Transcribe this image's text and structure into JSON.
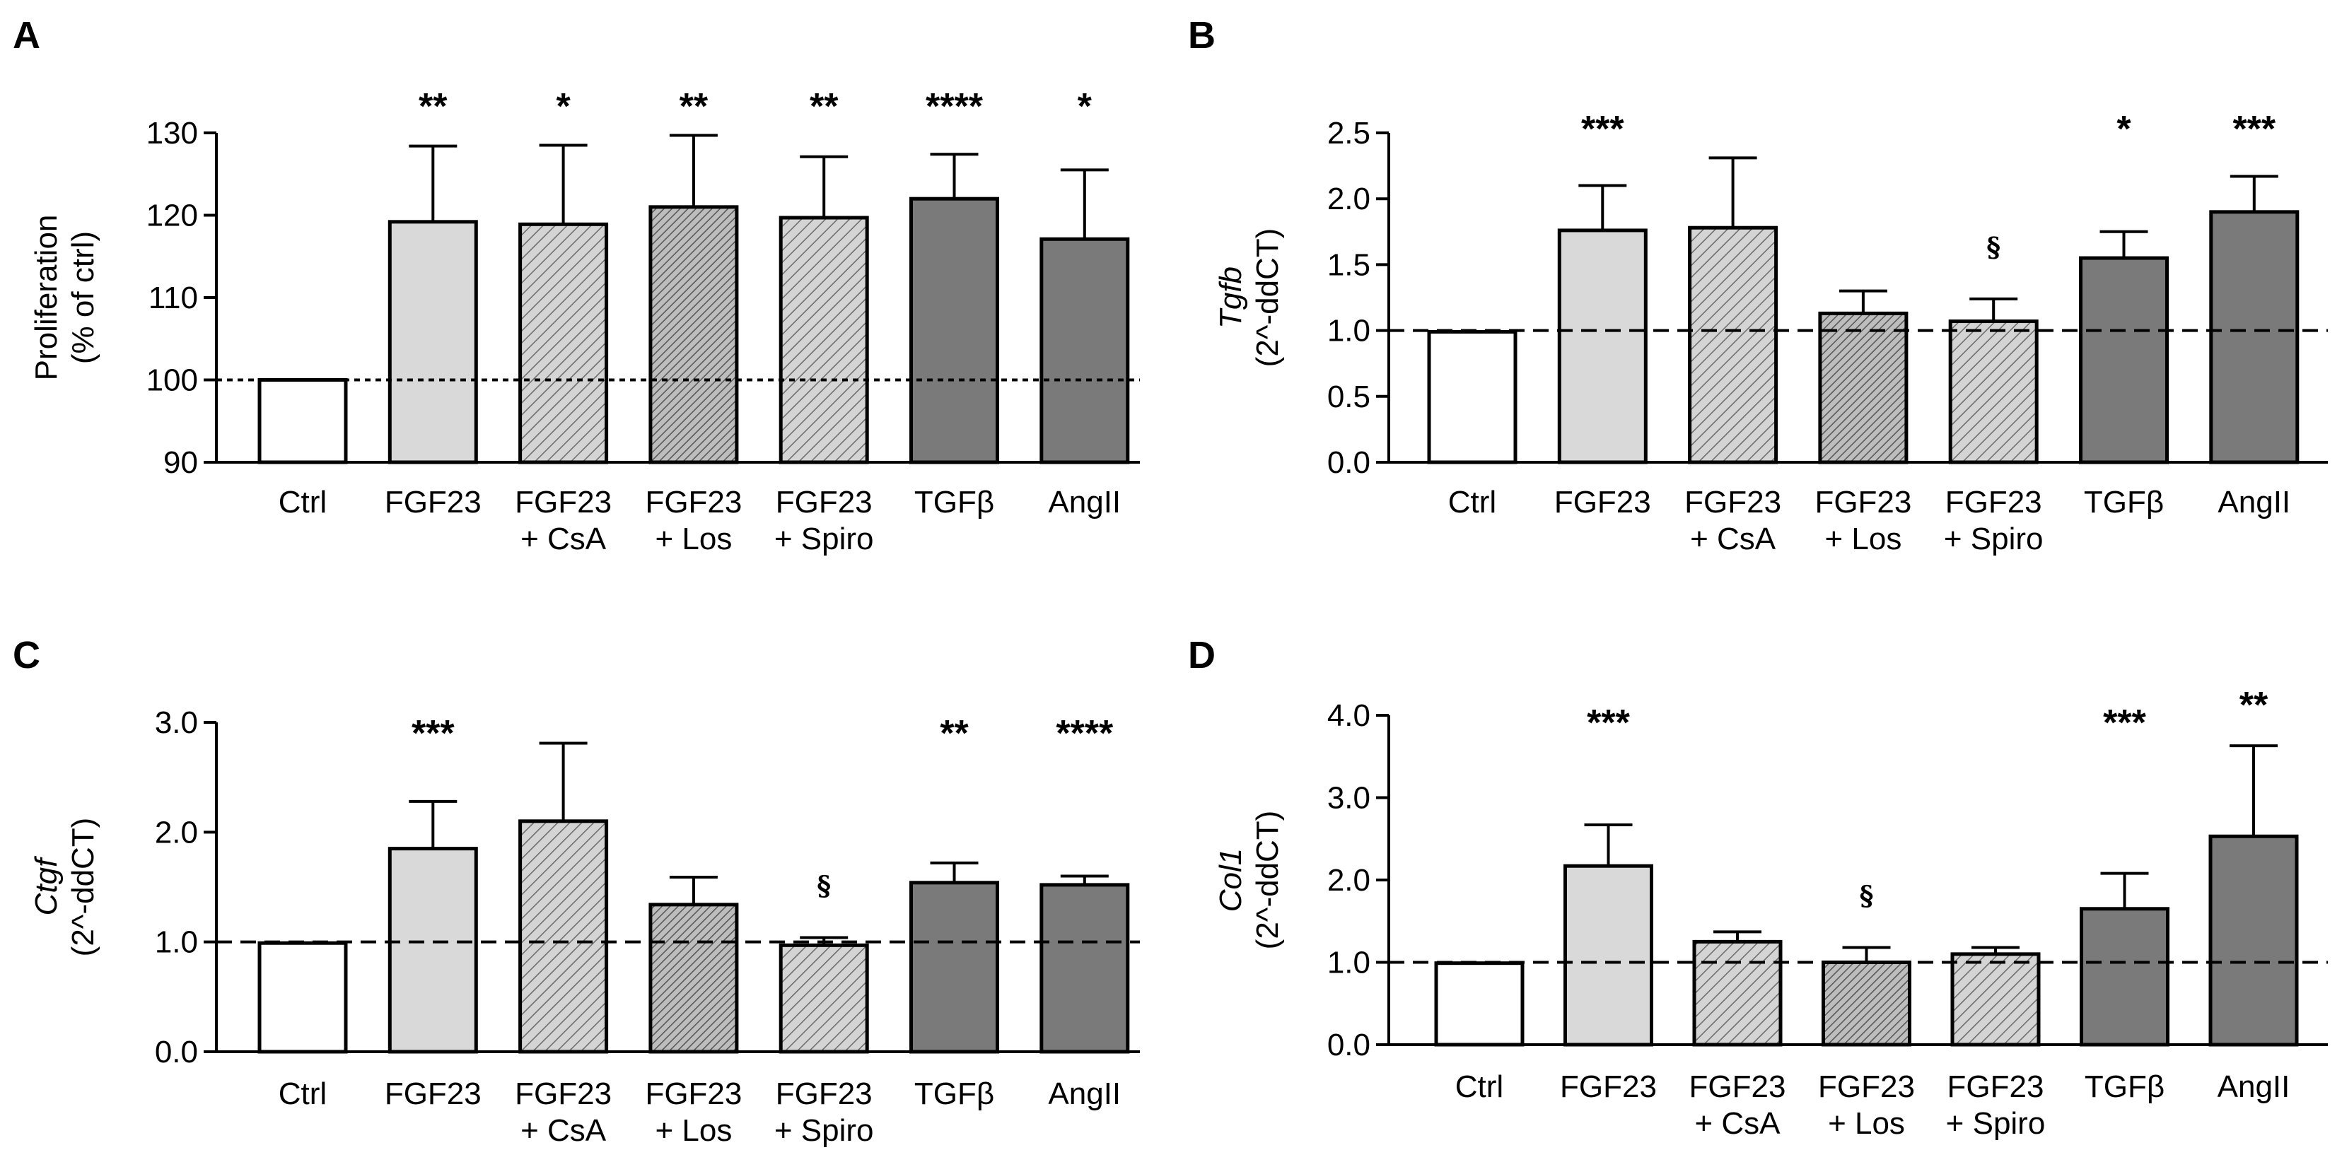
{
  "colors": {
    "ctrl": "#ffffff",
    "fgf23": "#d9d9d9",
    "hatch_bg": "#d4d4d4",
    "hatch_dense_bg": "#bdbdbd",
    "dark": "#7a7a7a",
    "stroke": "#000000"
  },
  "chart_data": [
    {
      "panel": "A",
      "type": "bar",
      "ylabel_lines": [
        "Proliferation",
        "(% of ctrl)"
      ],
      "ylabel_italic_first": false,
      "ylim": [
        90,
        130
      ],
      "yticks": [
        90,
        100,
        110,
        120,
        130
      ],
      "ytick_labels": [
        "90",
        "100",
        "110",
        "120",
        "130"
      ],
      "baseline": 100,
      "baseline_style": "dotted",
      "categories": [
        {
          "label": [
            "Ctrl"
          ],
          "value": 100,
          "error": 0,
          "style": "white",
          "sig": ""
        },
        {
          "label": [
            "FGF23"
          ],
          "value": 119.2,
          "error": 9.2,
          "style": "light",
          "sig": "**"
        },
        {
          "label": [
            "FGF23",
            "+ CsA"
          ],
          "value": 118.9,
          "error": 9.6,
          "style": "hatch",
          "sig": "*"
        },
        {
          "label": [
            "FGF23",
            "+ Los"
          ],
          "value": 121,
          "error": 8.7,
          "style": "hatch-dense",
          "sig": "**"
        },
        {
          "label": [
            "FGF23",
            "+ Spiro"
          ],
          "value": 119.7,
          "error": 7.4,
          "style": "hatch",
          "sig": "**"
        },
        {
          "label": [
            "TGFβ"
          ],
          "value": 122,
          "error": 5.4,
          "style": "dark",
          "sig": "****"
        },
        {
          "label": [
            "AngII"
          ],
          "value": 117.1,
          "error": 8.4,
          "style": "dark",
          "sig": "*"
        }
      ]
    },
    {
      "panel": "B",
      "type": "bar",
      "ylabel_lines": [
        "Tgfb",
        "(2^-ddCT)"
      ],
      "ylabel_italic_first": true,
      "ylim": [
        0,
        2.5
      ],
      "yticks": [
        0,
        0.5,
        1.0,
        1.5,
        2.0,
        2.5
      ],
      "ytick_labels": [
        "0.0",
        "0.5",
        "1.0",
        "1.5",
        "2.0",
        "2.5"
      ],
      "baseline": 1.0,
      "baseline_style": "dashed",
      "categories": [
        {
          "label": [
            "Ctrl"
          ],
          "value": 0.99,
          "error": 0,
          "style": "white",
          "sig": ""
        },
        {
          "label": [
            "FGF23"
          ],
          "value": 1.76,
          "error": 0.34,
          "style": "light",
          "sig": "***"
        },
        {
          "label": [
            "FGF23",
            "+ CsA"
          ],
          "value": 1.78,
          "error": 0.53,
          "style": "hatch",
          "sig": ""
        },
        {
          "label": [
            "FGF23",
            "+ Los"
          ],
          "value": 1.13,
          "error": 0.17,
          "style": "hatch-dense",
          "sig": ""
        },
        {
          "label": [
            "FGF23",
            "+ Spiro"
          ],
          "value": 1.07,
          "error": 0.17,
          "style": "hatch",
          "sig": "§"
        },
        {
          "label": [
            "TGFβ"
          ],
          "value": 1.55,
          "error": 0.2,
          "style": "dark",
          "sig": "*"
        },
        {
          "label": [
            "AngII"
          ],
          "value": 1.9,
          "error": 0.27,
          "style": "dark",
          "sig": "***"
        }
      ]
    },
    {
      "panel": "C",
      "type": "bar",
      "ylabel_lines": [
        "Ctgf",
        "(2^-ddCT)"
      ],
      "ylabel_italic_first": true,
      "ylim": [
        0,
        3.0
      ],
      "yticks": [
        0,
        1.0,
        2.0,
        3.0
      ],
      "ytick_labels": [
        "0.0",
        "1.0",
        "2.0",
        "3.0"
      ],
      "baseline": 1.0,
      "baseline_style": "dashed",
      "categories": [
        {
          "label": [
            "Ctrl"
          ],
          "value": 0.99,
          "error": 0,
          "style": "white",
          "sig": ""
        },
        {
          "label": [
            "FGF23"
          ],
          "value": 1.85,
          "error": 0.43,
          "style": "light",
          "sig": "***"
        },
        {
          "label": [
            "FGF23",
            "+ CsA"
          ],
          "value": 2.1,
          "error": 0.71,
          "style": "hatch",
          "sig": ""
        },
        {
          "label": [
            "FGF23",
            "+ Los"
          ],
          "value": 1.34,
          "error": 0.25,
          "style": "hatch-dense",
          "sig": ""
        },
        {
          "label": [
            "FGF23",
            "+ Spiro"
          ],
          "value": 0.97,
          "error": 0.07,
          "style": "hatch",
          "sig": "§"
        },
        {
          "label": [
            "TGFβ"
          ],
          "value": 1.54,
          "error": 0.18,
          "style": "dark",
          "sig": "**"
        },
        {
          "label": [
            "AngII"
          ],
          "value": 1.52,
          "error": 0.08,
          "style": "dark",
          "sig": "****"
        }
      ]
    },
    {
      "panel": "D",
      "type": "bar",
      "ylabel_lines": [
        "Col1",
        "(2^-ddCT)"
      ],
      "ylabel_italic_first": true,
      "ylim": [
        0,
        4.0
      ],
      "yticks": [
        0,
        1.0,
        2.0,
        3.0,
        4.0
      ],
      "ytick_labels": [
        "0.0",
        "1.0",
        "2.0",
        "3.0",
        "4.0"
      ],
      "baseline": 1.0,
      "baseline_style": "dashed",
      "categories": [
        {
          "label": [
            "Ctrl"
          ],
          "value": 0.99,
          "error": 0,
          "style": "white",
          "sig": ""
        },
        {
          "label": [
            "FGF23"
          ],
          "value": 2.17,
          "error": 0.5,
          "style": "light",
          "sig": "***"
        },
        {
          "label": [
            "FGF23",
            "+ CsA"
          ],
          "value": 1.25,
          "error": 0.12,
          "style": "hatch",
          "sig": ""
        },
        {
          "label": [
            "FGF23",
            "+ Los"
          ],
          "value": 1.0,
          "error": 0.18,
          "style": "hatch-dense",
          "sig": "§"
        },
        {
          "label": [
            "FGF23",
            "+ Spiro"
          ],
          "value": 1.1,
          "error": 0.08,
          "style": "hatch",
          "sig": ""
        },
        {
          "label": [
            "TGFβ"
          ],
          "value": 1.65,
          "error": 0.43,
          "style": "dark",
          "sig": "***"
        },
        {
          "label": [
            "AngII"
          ],
          "value": 2.53,
          "error": 1.1,
          "style": "dark",
          "sig": "**"
        }
      ]
    }
  ]
}
